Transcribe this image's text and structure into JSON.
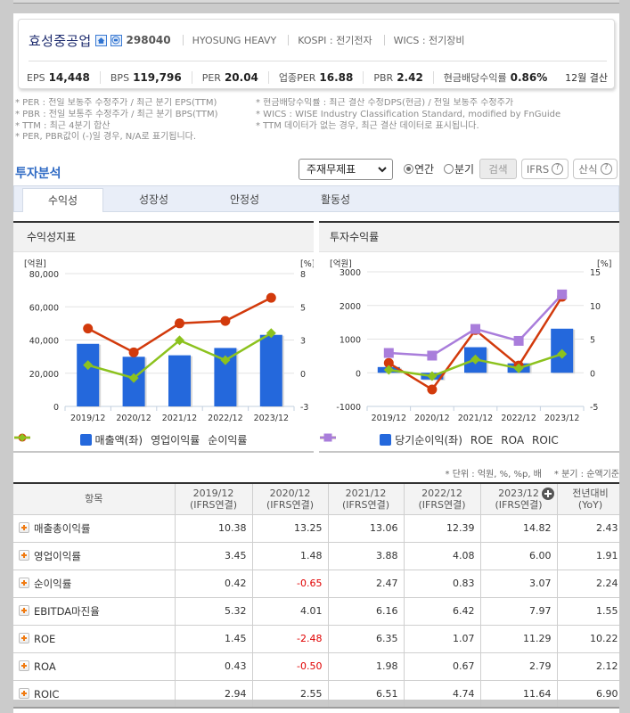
{
  "header": {
    "company_name": "효성중공업",
    "code": "298040",
    "english_name": "HYOSUNG HEAVY",
    "market": "KOSPI : 전기전자",
    "wics": "WICS : 전기장비",
    "icons": {
      "homepage": "home-icon",
      "ir_contact": "phone-icon"
    },
    "metrics": [
      {
        "label": "EPS",
        "value": "14,448"
      },
      {
        "label": "BPS",
        "value": "119,796"
      },
      {
        "label": "PER",
        "value": "20.04"
      },
      {
        "label": "업종PER",
        "value": "16.88"
      },
      {
        "label": "PBR",
        "value": "2.42"
      },
      {
        "label": "현금배당수익률",
        "value": "0.86%"
      }
    ],
    "fiscal": "12월 결산"
  },
  "notes": {
    "left": [
      "* PER : 전일 보통주 수정주가 / 최근 분기 EPS(TTM)",
      "* PBR : 전일 보통주 수정주가 / 최근 분기 BPS(TTM)",
      "* TTM : 최근 4분기 합산",
      "* PER, PBR값이 (-)일 경우, N/A로 표기됩니다."
    ],
    "right": [
      "* 현금배당수익률 : 최근 결산 수정DPS(현금) / 전일 보통주 수정주가",
      "* WICS : WISE Industry Classification Standard, modified by FnGuide",
      "* TTM 데이터가 없는 경우, 최근 결산 데이터로 표시됩니다."
    ]
  },
  "analysis": {
    "title": "투자분석",
    "statement_select": "주재무제표",
    "period_options": [
      {
        "label": "연간",
        "checked": true
      },
      {
        "label": "분기",
        "checked": false
      }
    ],
    "search_button": "검색",
    "ifrs_button": "IFRS",
    "formula_button": "산식"
  },
  "tabs": [
    {
      "label": "수익성",
      "active": true
    },
    {
      "label": "성장성",
      "active": false
    },
    {
      "label": "안정성",
      "active": false
    },
    {
      "label": "활동성",
      "active": false
    }
  ],
  "units_note": "* 단위 : 억원, %, %p, 배",
  "quarter_note": "* 분기 : 순액기준",
  "colors": {
    "accent": "#2f6ac4",
    "bar": "#2468dc",
    "negative": "#e00000",
    "expand": "#f07a10"
  },
  "table": {
    "columns": [
      {
        "period": "항목",
        "basis": ""
      },
      {
        "period": "2019/12",
        "basis": "(IFRS연결)"
      },
      {
        "period": "2020/12",
        "basis": "(IFRS연결)"
      },
      {
        "period": "2021/12",
        "basis": "(IFRS연결)"
      },
      {
        "period": "2022/12",
        "basis": "(IFRS연결)"
      },
      {
        "period": "2023/12",
        "basis": "(IFRS연결)",
        "expand_icon": "plus-circle-icon"
      },
      {
        "period": "전년대비",
        "basis": "(YoY)"
      }
    ],
    "rows": [
      {
        "label": "매출총이익률",
        "values": [
          "10.38",
          "13.25",
          "13.06",
          "12.39",
          "14.82",
          "2.43"
        ]
      },
      {
        "label": "영업이익률",
        "values": [
          "3.45",
          "1.48",
          "3.88",
          "4.08",
          "6.00",
          "1.91"
        ]
      },
      {
        "label": "순이익률",
        "values": [
          "0.42",
          "-0.65",
          "2.47",
          "0.83",
          "3.07",
          "2.24"
        ]
      },
      {
        "label": "EBITDA마진율",
        "values": [
          "5.32",
          "4.01",
          "6.16",
          "6.42",
          "7.97",
          "1.55"
        ]
      },
      {
        "label": "ROE",
        "values": [
          "1.45",
          "-2.48",
          "6.35",
          "1.07",
          "11.29",
          "10.22"
        ]
      },
      {
        "label": "ROA",
        "values": [
          "0.43",
          "-0.50",
          "1.98",
          "0.67",
          "2.79",
          "2.12"
        ]
      },
      {
        "label": "ROIC",
        "values": [
          "2.94",
          "2.55",
          "6.51",
          "4.74",
          "11.64",
          "6.90"
        ]
      }
    ]
  },
  "chart_data": [
    {
      "title": "수익성지표",
      "type": "bar",
      "categories": [
        "2019/12",
        "2020/12",
        "2021/12",
        "2022/12",
        "2023/12"
      ],
      "y_left_label": "[억원]",
      "y_right_label": "[%]",
      "y_left_range": [
        0,
        80000
      ],
      "y_right_range": [
        -3,
        8
      ],
      "y_left_ticks": [
        "80,000",
        "60,000",
        "40,000",
        "20,000",
        "0"
      ],
      "y_right_ticks": [
        "8",
        "5",
        "3",
        "0",
        "-3"
      ],
      "grid": true,
      "legend_position": "bottom",
      "series": [
        {
          "name": "매출액(좌)",
          "type": "bar",
          "axis": "left",
          "color": "#2468dc",
          "values": [
            37700,
            29900,
            30800,
            35200,
            43100
          ]
        },
        {
          "name": "영업이익률",
          "type": "line",
          "marker": "circle",
          "axis": "right",
          "color": "#d23a0c",
          "values": [
            3.45,
            1.48,
            3.88,
            4.08,
            6.0
          ]
        },
        {
          "name": "순이익률",
          "type": "line",
          "marker": "diamond",
          "axis": "right",
          "color": "#8cc21e",
          "values": [
            0.42,
            -0.65,
            2.47,
            0.83,
            3.07
          ]
        }
      ]
    },
    {
      "title": "투자수익률",
      "type": "bar",
      "categories": [
        "2019/12",
        "2020/12",
        "2021/12",
        "2022/12",
        "2023/12"
      ],
      "y_left_label": "[억원]",
      "y_right_label": "[%]",
      "y_left_range": [
        -1000,
        3000
      ],
      "y_right_range": [
        -5,
        15
      ],
      "y_left_ticks": [
        "3000",
        "2000",
        "1000",
        "0",
        "-1000"
      ],
      "y_right_ticks": [
        "15",
        "10",
        "5",
        "0",
        "-5"
      ],
      "grid": true,
      "legend_position": "bottom",
      "series": [
        {
          "name": "당기순이익(좌)",
          "type": "bar",
          "axis": "left",
          "color": "#2468dc",
          "values": [
            170,
            -200,
            760,
            280,
            1310
          ]
        },
        {
          "name": "ROE",
          "type": "line",
          "marker": "circle",
          "axis": "right",
          "color": "#d23a0c",
          "values": [
            1.45,
            -2.48,
            6.35,
            1.07,
            11.29
          ]
        },
        {
          "name": "ROA",
          "type": "line",
          "marker": "diamond",
          "axis": "right",
          "color": "#8cc21e",
          "values": [
            0.43,
            -0.5,
            1.98,
            0.67,
            2.79
          ]
        },
        {
          "name": "ROIC",
          "type": "line",
          "marker": "square",
          "axis": "right",
          "color": "#a97ddb",
          "values": [
            2.94,
            2.55,
            6.51,
            4.74,
            11.64
          ]
        }
      ]
    }
  ]
}
